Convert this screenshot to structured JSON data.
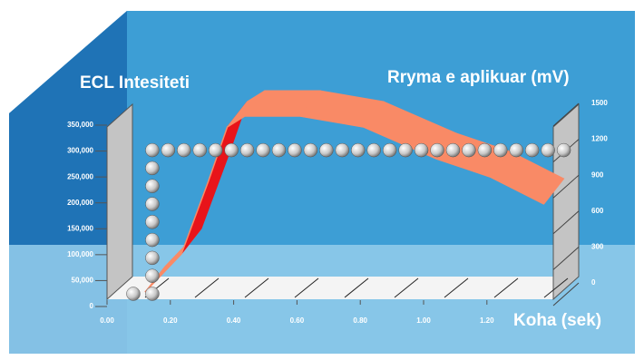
{
  "chart_data": {
    "type": "line",
    "ylabel": "ECL Intesiteti",
    "y2label": "Rryma e aplikuar (mV)",
    "xlabel": "Koha (sek)",
    "xlim": [
      0,
      1.4
    ],
    "xticks": [
      {
        "value": 0,
        "label": "0.00"
      },
      {
        "value": 0.2,
        "label": "0.20"
      },
      {
        "value": 0.4,
        "label": "0.40"
      },
      {
        "value": 0.6,
        "label": "0.60"
      },
      {
        "value": 0.8,
        "label": "0.80"
      },
      {
        "value": 1,
        "label": "1.00"
      },
      {
        "value": 1.2,
        "label": "1.20"
      }
    ],
    "ylim": [
      0,
      350000
    ],
    "yticks": [
      0,
      {
        "value": 50000,
        "label": "50,000"
      },
      {
        "value": 100000,
        "label": "100,000"
      },
      {
        "value": 150000,
        "label": "150,000"
      },
      {
        "value": 200000,
        "label": "200,000"
      },
      {
        "value": 250000,
        "label": "250,000"
      },
      {
        "value": 300000,
        "label": "300,000"
      },
      {
        "value": 350000,
        "label": "350,000"
      }
    ],
    "y2lim": [
      0,
      1500
    ],
    "y2ticks": [
      0,
      300,
      600,
      900,
      1200,
      1500
    ],
    "series": [
      {
        "style": "ribbon",
        "axis": "y",
        "color": "#f98a66",
        "side_color": "#e8141a",
        "x": [
          0.12,
          0.235,
          0.32,
          0.38,
          0.435,
          0.61,
          0.81,
          1.04,
          1.21,
          1.38
        ],
        "values": [
          28000,
          101500,
          241500,
          346500,
          367500,
          367500,
          346500,
          285250,
          250250,
          197750
        ]
      },
      {
        "style": "spheres",
        "axis": "y2",
        "color": "#e6e6e6",
        "x": [
          0.04,
          0.1,
          0.1,
          0.1,
          0.1,
          0.1,
          0.1,
          0.1,
          0.1,
          0.1,
          0.15,
          0.2,
          0.25,
          0.3,
          0.35,
          0.4,
          0.45,
          0.5,
          0.55,
          0.6,
          0.65,
          0.7,
          0.75,
          0.8,
          0.85,
          0.9,
          0.95,
          1.0,
          1.05,
          1.1,
          1.15,
          1.2,
          1.25,
          1.3,
          1.35,
          1.4
        ],
        "values": [
          0,
          0,
          150,
          300,
          450,
          600,
          750,
          900,
          1050,
          1200,
          1200,
          1200,
          1200,
          1200,
          1200,
          1200,
          1200,
          1200,
          1200,
          1200,
          1200,
          1200,
          1200,
          1200,
          1200,
          1200,
          1200,
          1200,
          1200,
          1200,
          1200,
          1200,
          1200,
          1200,
          1200,
          1200
        ]
      }
    ]
  }
}
